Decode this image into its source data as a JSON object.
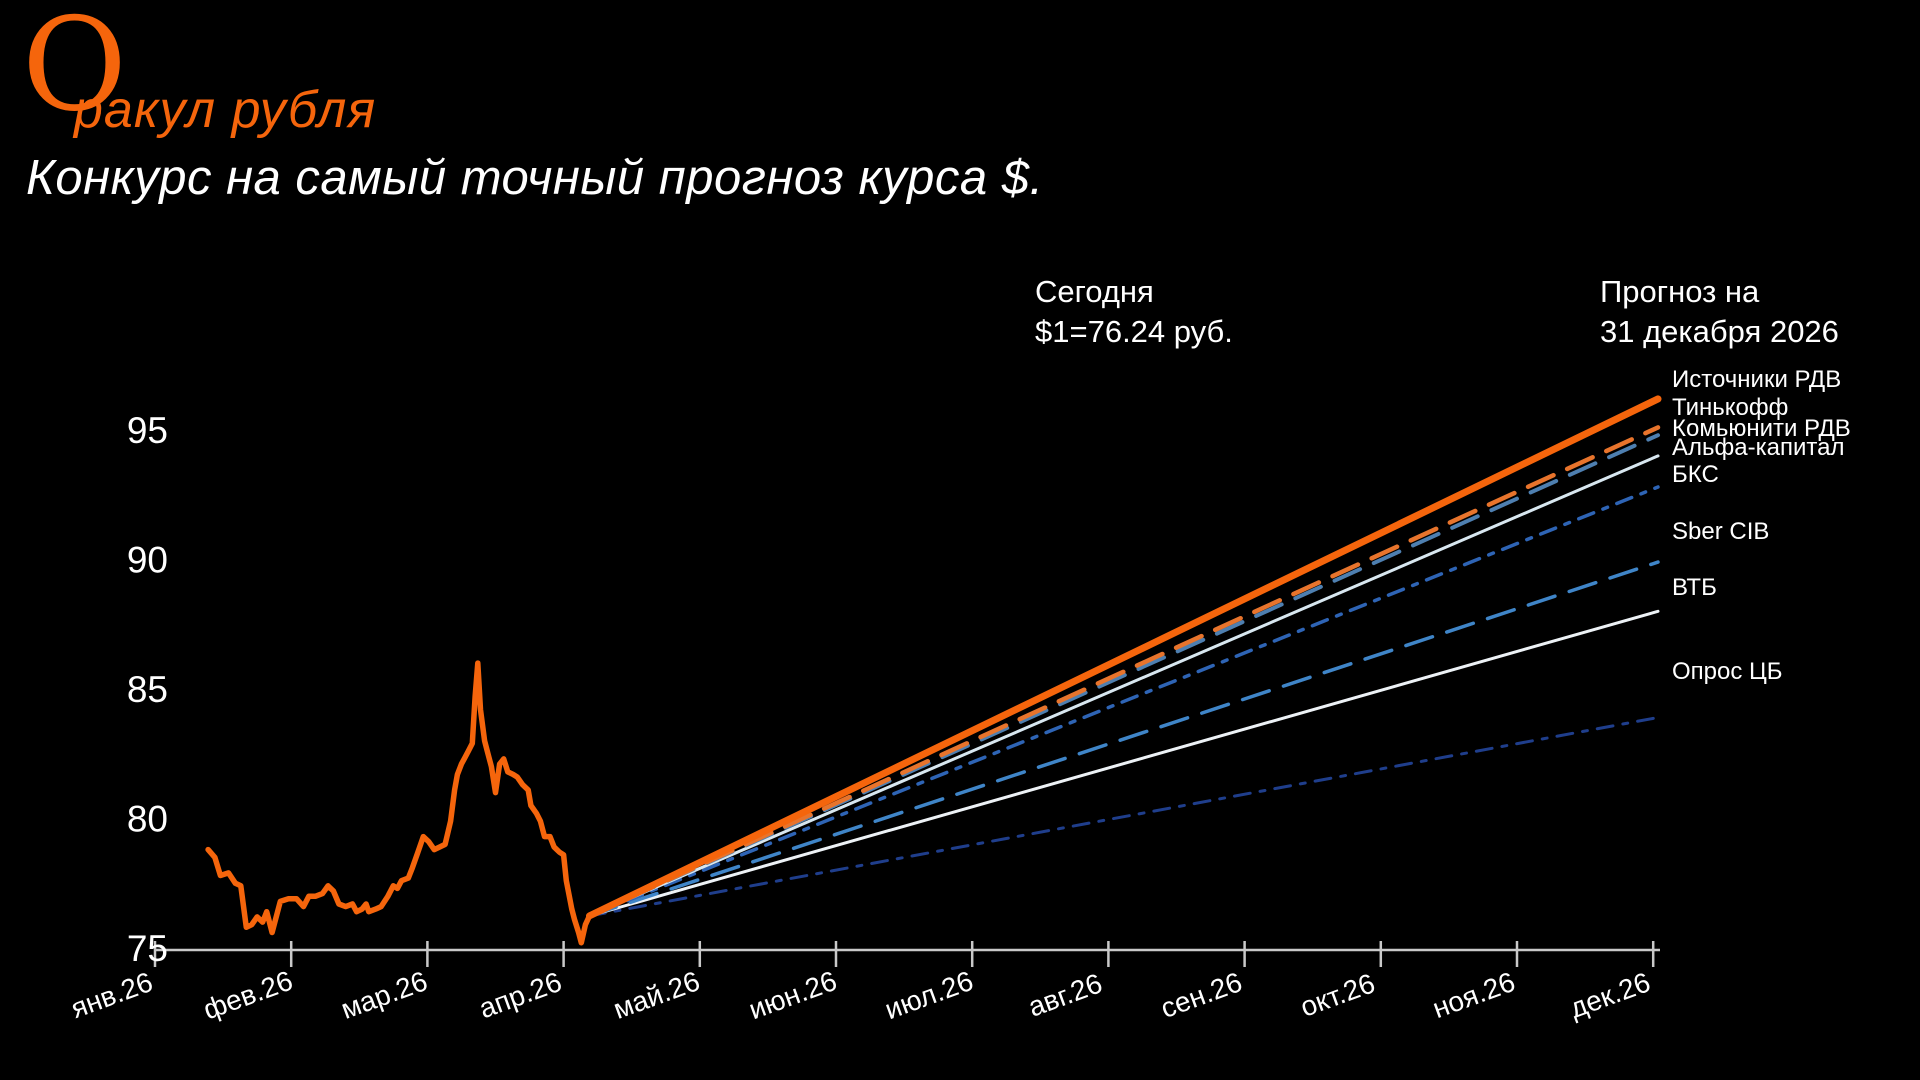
{
  "header": {
    "logo_initial": "О",
    "logo_rest": "ракул рубля",
    "subtitle": "Конкурс на самый точный прогноз курса $."
  },
  "annotations": {
    "today_label": "Сегодня",
    "today_value": "$1=76.24 руб.",
    "forecast_label_line1": "Прогноз на",
    "forecast_label_line2": "31 декабря 2026"
  },
  "chart_data": {
    "type": "line",
    "x_tick_labels": [
      "янв.26",
      "фев.26",
      "мар.26",
      "апр.26",
      "май.26",
      "июн.26",
      "июл.26",
      "авг.26",
      "сен.26",
      "окт.26",
      "ноя.26",
      "дек.26"
    ],
    "y_ticks": [
      75,
      80,
      85,
      90,
      95
    ],
    "ylim": [
      75,
      97
    ],
    "grid": false,
    "axis_color": "#C9C9C9",
    "text_color": "#FFFFFF",
    "accent_color": "#F5650C",
    "today": {
      "month_index": 3.19,
      "value": 76.24
    },
    "history": {
      "color": "#F5650C",
      "points": [
        [
          0.39,
          78.8
        ],
        [
          0.44,
          78.5
        ],
        [
          0.48,
          77.8
        ],
        [
          0.54,
          77.9
        ],
        [
          0.59,
          77.5
        ],
        [
          0.63,
          77.4
        ],
        [
          0.67,
          75.8
        ],
        [
          0.71,
          75.9
        ],
        [
          0.75,
          76.2
        ],
        [
          0.79,
          76.0
        ],
        [
          0.82,
          76.4
        ],
        [
          0.86,
          75.6
        ],
        [
          0.92,
          76.8
        ],
        [
          0.98,
          76.9
        ],
        [
          1.04,
          76.9
        ],
        [
          1.09,
          76.6
        ],
        [
          1.13,
          77.0
        ],
        [
          1.18,
          77.0
        ],
        [
          1.23,
          77.1
        ],
        [
          1.27,
          77.4
        ],
        [
          1.31,
          77.2
        ],
        [
          1.35,
          76.7
        ],
        [
          1.4,
          76.6
        ],
        [
          1.45,
          76.7
        ],
        [
          1.48,
          76.4
        ],
        [
          1.52,
          76.5
        ],
        [
          1.55,
          76.7
        ],
        [
          1.57,
          76.4
        ],
        [
          1.62,
          76.5
        ],
        [
          1.66,
          76.6
        ],
        [
          1.71,
          77.0
        ],
        [
          1.75,
          77.4
        ],
        [
          1.78,
          77.3
        ],
        [
          1.81,
          77.6
        ],
        [
          1.86,
          77.7
        ],
        [
          1.89,
          78.1
        ],
        [
          1.93,
          78.7
        ],
        [
          1.97,
          79.3
        ],
        [
          2.01,
          79.1
        ],
        [
          2.05,
          78.8
        ],
        [
          2.09,
          78.9
        ],
        [
          2.13,
          79.0
        ],
        [
          2.17,
          79.9
        ],
        [
          2.2,
          81.1
        ],
        [
          2.22,
          81.7
        ],
        [
          2.25,
          82.1
        ],
        [
          2.27,
          82.3
        ],
        [
          2.3,
          82.6
        ],
        [
          2.33,
          82.9
        ],
        [
          2.35,
          84.7
        ],
        [
          2.37,
          86.0
        ],
        [
          2.39,
          84.2
        ],
        [
          2.42,
          83.0
        ],
        [
          2.44,
          82.6
        ],
        [
          2.47,
          82.0
        ],
        [
          2.5,
          81.0
        ],
        [
          2.53,
          82.1
        ],
        [
          2.56,
          82.3
        ],
        [
          2.59,
          81.8
        ],
        [
          2.63,
          81.7
        ],
        [
          2.66,
          81.6
        ],
        [
          2.7,
          81.3
        ],
        [
          2.74,
          81.1
        ],
        [
          2.76,
          80.5
        ],
        [
          2.8,
          80.2
        ],
        [
          2.83,
          79.9
        ],
        [
          2.86,
          79.3
        ],
        [
          2.9,
          79.3
        ],
        [
          2.93,
          78.9
        ],
        [
          2.97,
          78.7
        ],
        [
          3.0,
          78.6
        ],
        [
          3.02,
          77.6
        ],
        [
          3.06,
          76.5
        ],
        [
          3.08,
          76.1
        ],
        [
          3.11,
          75.6
        ],
        [
          3.13,
          75.2
        ],
        [
          3.16,
          75.9
        ],
        [
          3.19,
          76.24
        ]
      ]
    },
    "series": [
      {
        "name": "Источники РДВ",
        "value": 96.2,
        "color": "#F5650C",
        "style": "solid",
        "width": 7
      },
      {
        "name": "Тинькофф",
        "value": 95.1,
        "color": "#E8742C",
        "style": "dashed",
        "width": 4.5
      },
      {
        "name": "Комьюнити РДВ",
        "value": 94.8,
        "color": "#4E7FB0",
        "style": "dashed",
        "width": 4
      },
      {
        "name": "Альфа-капитал",
        "value": 94.0,
        "color": "#D8E7F0",
        "style": "solid",
        "width": 3
      },
      {
        "name": "БКС",
        "value": 92.8,
        "color": "#2E64B5",
        "style": "dashdot",
        "width": 3.5
      },
      {
        "name": "Sber CIB",
        "value": 89.9,
        "color": "#3F85C8",
        "style": "dashed",
        "width": 3.5
      },
      {
        "name": "ВТБ",
        "value": 88.0,
        "color": "#EDF2F6",
        "style": "solid",
        "width": 3
      },
      {
        "name": "Опрос ЦБ",
        "value": 83.9,
        "color": "#1F3E8C",
        "style": "dashdot",
        "width": 3
      }
    ],
    "legend_position": "right"
  }
}
